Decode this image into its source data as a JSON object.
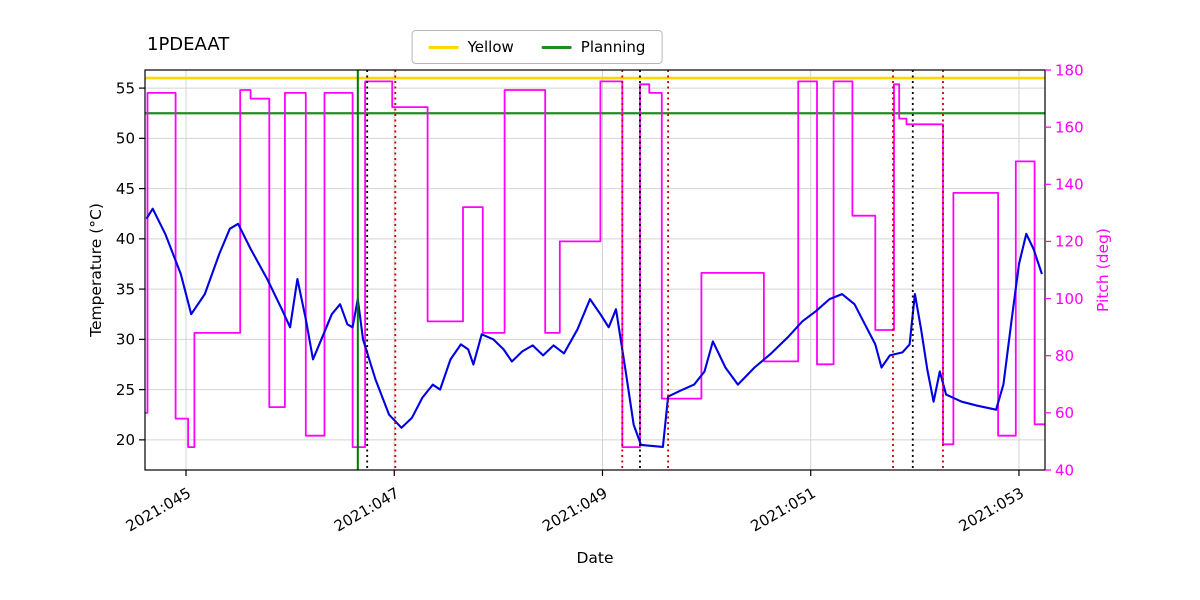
{
  "chart_data": {
    "type": "line",
    "title": "1PDEAAT",
    "xlabel": "Date",
    "ylabel_left": "Temperature (°C)",
    "ylabel_right": "Pitch (deg)",
    "x_unit": "2021 day-of-year (YYYY:DOY)",
    "x_range": [
      44.606,
      53.25
    ],
    "y_left_range": [
      17.0,
      56.8
    ],
    "y_right_range": [
      40,
      180
    ],
    "grid": true,
    "legend_position": "upper center",
    "legend": [
      {
        "label": "Yellow",
        "color": "#ffd700"
      },
      {
        "label": "Planning",
        "color": "#228b22"
      }
    ],
    "x_ticks": [
      {
        "value": 45,
        "label": "2021:045"
      },
      {
        "value": 47,
        "label": "2021:047"
      },
      {
        "value": 49,
        "label": "2021:049"
      },
      {
        "value": 51,
        "label": "2021:051"
      },
      {
        "value": 53,
        "label": "2021:053"
      }
    ],
    "y_left_ticks": [
      20,
      25,
      30,
      35,
      40,
      45,
      50,
      55
    ],
    "y_right_ticks": [
      40,
      60,
      80,
      100,
      120,
      140,
      160,
      180
    ],
    "hlines": [
      {
        "name": "yellow-limit",
        "y": 56.0,
        "axis": "left",
        "color": "#ffd700",
        "width": 2.6
      },
      {
        "name": "planning-limit",
        "y": 52.5,
        "axis": "left",
        "color": "#228b22",
        "width": 2.2
      }
    ],
    "vlines": [
      {
        "x": 46.65,
        "color": "#007700",
        "style": "solid"
      },
      {
        "x": 46.74,
        "color": "#000000",
        "style": "dotted"
      },
      {
        "x": 47.01,
        "color": "#cc0000",
        "style": "dotted"
      },
      {
        "x": 49.19,
        "color": "#cc0000",
        "style": "dotted"
      },
      {
        "x": 49.36,
        "color": "#000000",
        "style": "dotted"
      },
      {
        "x": 49.63,
        "color": "#cc0000",
        "style": "dotted"
      },
      {
        "x": 51.79,
        "color": "#cc0000",
        "style": "dotted"
      },
      {
        "x": 51.98,
        "color": "#000000",
        "style": "dotted"
      },
      {
        "x": 52.27,
        "color": "#cc0000",
        "style": "dotted"
      }
    ],
    "series": [
      {
        "name": "pitch",
        "axis": "right",
        "color": "#ff00ff",
        "width": 1.8,
        "points": [
          [
            44.61,
            60
          ],
          [
            44.63,
            60
          ],
          [
            44.63,
            172
          ],
          [
            44.9,
            172
          ],
          [
            44.9,
            58
          ],
          [
            45.02,
            58
          ],
          [
            45.02,
            48
          ],
          [
            45.08,
            48
          ],
          [
            45.08,
            88
          ],
          [
            45.52,
            88
          ],
          [
            45.52,
            173
          ],
          [
            45.62,
            173
          ],
          [
            45.62,
            170
          ],
          [
            45.8,
            170
          ],
          [
            45.8,
            62
          ],
          [
            45.95,
            62
          ],
          [
            45.95,
            172
          ],
          [
            46.15,
            172
          ],
          [
            46.15,
            52
          ],
          [
            46.33,
            52
          ],
          [
            46.33,
            172
          ],
          [
            46.6,
            172
          ],
          [
            46.6,
            48
          ],
          [
            46.72,
            48
          ],
          [
            46.72,
            176
          ],
          [
            46.98,
            176
          ],
          [
            46.98,
            167
          ],
          [
            47.32,
            167
          ],
          [
            47.32,
            92
          ],
          [
            47.66,
            92
          ],
          [
            47.66,
            132
          ],
          [
            47.85,
            132
          ],
          [
            47.85,
            88
          ],
          [
            48.06,
            88
          ],
          [
            48.06,
            173
          ],
          [
            48.45,
            173
          ],
          [
            48.45,
            88
          ],
          [
            48.59,
            88
          ],
          [
            48.59,
            120
          ],
          [
            48.98,
            120
          ],
          [
            48.98,
            176
          ],
          [
            49.19,
            176
          ],
          [
            49.19,
            48
          ],
          [
            49.36,
            48
          ],
          [
            49.36,
            175
          ],
          [
            49.45,
            175
          ],
          [
            49.45,
            172
          ],
          [
            49.57,
            172
          ],
          [
            49.57,
            65
          ],
          [
            49.95,
            65
          ],
          [
            49.95,
            109
          ],
          [
            50.55,
            109
          ],
          [
            50.55,
            78
          ],
          [
            50.88,
            78
          ],
          [
            50.88,
            176
          ],
          [
            51.06,
            176
          ],
          [
            51.06,
            77
          ],
          [
            51.22,
            77
          ],
          [
            51.22,
            176
          ],
          [
            51.4,
            176
          ],
          [
            51.4,
            129
          ],
          [
            51.62,
            129
          ],
          [
            51.62,
            89
          ],
          [
            51.8,
            89
          ],
          [
            51.8,
            175
          ],
          [
            51.85,
            175
          ],
          [
            51.85,
            163
          ],
          [
            51.92,
            163
          ],
          [
            51.92,
            161
          ],
          [
            52.27,
            161
          ],
          [
            52.27,
            49
          ],
          [
            52.37,
            49
          ],
          [
            52.37,
            137
          ],
          [
            52.8,
            137
          ],
          [
            52.8,
            52
          ],
          [
            52.97,
            52
          ],
          [
            52.97,
            148
          ],
          [
            53.15,
            148
          ],
          [
            53.15,
            56
          ],
          [
            53.25,
            56
          ]
        ]
      },
      {
        "name": "temperature-1PDEAAT",
        "axis": "left",
        "color": "#0000e0",
        "width": 2.1,
        "points": [
          [
            44.62,
            42.0
          ],
          [
            44.68,
            43.0
          ],
          [
            44.8,
            40.5
          ],
          [
            44.95,
            36.5
          ],
          [
            45.05,
            32.5
          ],
          [
            45.18,
            34.5
          ],
          [
            45.32,
            38.5
          ],
          [
            45.42,
            41.0
          ],
          [
            45.5,
            41.5
          ],
          [
            45.62,
            39.0
          ],
          [
            45.78,
            36.0
          ],
          [
            45.92,
            33.0
          ],
          [
            46.0,
            31.2
          ],
          [
            46.07,
            36.0
          ],
          [
            46.15,
            32.0
          ],
          [
            46.22,
            28.0
          ],
          [
            46.3,
            30.0
          ],
          [
            46.4,
            32.5
          ],
          [
            46.48,
            33.5
          ],
          [
            46.55,
            31.5
          ],
          [
            46.6,
            31.2
          ],
          [
            46.65,
            34.0
          ],
          [
            46.7,
            30.0
          ],
          [
            46.82,
            26.0
          ],
          [
            46.95,
            22.5
          ],
          [
            47.07,
            21.2
          ],
          [
            47.17,
            22.2
          ],
          [
            47.27,
            24.2
          ],
          [
            47.37,
            25.5
          ],
          [
            47.44,
            25.0
          ],
          [
            47.54,
            28.0
          ],
          [
            47.64,
            29.5
          ],
          [
            47.71,
            29.0
          ],
          [
            47.76,
            27.5
          ],
          [
            47.84,
            30.5
          ],
          [
            47.95,
            30.0
          ],
          [
            48.05,
            29.0
          ],
          [
            48.13,
            27.8
          ],
          [
            48.23,
            28.8
          ],
          [
            48.33,
            29.4
          ],
          [
            48.43,
            28.4
          ],
          [
            48.53,
            29.4
          ],
          [
            48.63,
            28.6
          ],
          [
            48.76,
            31.0
          ],
          [
            48.88,
            34.0
          ],
          [
            48.98,
            32.5
          ],
          [
            49.06,
            31.2
          ],
          [
            49.13,
            33.0
          ],
          [
            49.22,
            27.0
          ],
          [
            49.3,
            21.5
          ],
          [
            49.37,
            19.5
          ],
          [
            49.58,
            19.3
          ],
          [
            49.63,
            24.3
          ],
          [
            49.75,
            24.9
          ],
          [
            49.88,
            25.5
          ],
          [
            49.98,
            26.8
          ],
          [
            50.06,
            29.8
          ],
          [
            50.18,
            27.2
          ],
          [
            50.3,
            25.5
          ],
          [
            50.46,
            27.2
          ],
          [
            50.62,
            28.6
          ],
          [
            50.78,
            30.2
          ],
          [
            50.92,
            31.8
          ],
          [
            51.05,
            32.8
          ],
          [
            51.18,
            34.0
          ],
          [
            51.3,
            34.5
          ],
          [
            51.42,
            33.5
          ],
          [
            51.52,
            31.5
          ],
          [
            51.62,
            29.5
          ],
          [
            51.68,
            27.2
          ],
          [
            51.76,
            28.4
          ],
          [
            51.88,
            28.7
          ],
          [
            51.95,
            29.5
          ],
          [
            52.0,
            34.5
          ],
          [
            52.06,
            31.0
          ],
          [
            52.12,
            27.0
          ],
          [
            52.18,
            23.8
          ],
          [
            52.24,
            26.8
          ],
          [
            52.3,
            24.5
          ],
          [
            52.45,
            23.8
          ],
          [
            52.6,
            23.4
          ],
          [
            52.78,
            23.0
          ],
          [
            52.85,
            25.5
          ],
          [
            52.93,
            32.0
          ],
          [
            53.0,
            37.5
          ],
          [
            53.07,
            40.5
          ],
          [
            53.14,
            39.0
          ],
          [
            53.22,
            36.5
          ]
        ]
      }
    ],
    "style": {
      "grid_color": "#d4d4d4",
      "spine_color": "#000000",
      "right_axis_color": "#ff00ff",
      "background": "#ffffff"
    }
  }
}
